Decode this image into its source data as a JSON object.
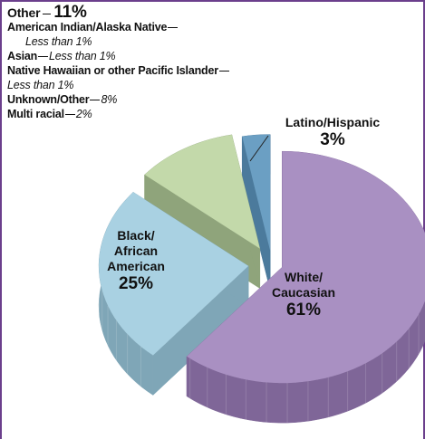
{
  "chart_data": {
    "type": "pie",
    "categories": [
      "White/Caucasian",
      "Black/African American",
      "Other",
      "Latino/Hispanic"
    ],
    "values": [
      61,
      25,
      11,
      3
    ],
    "value_labels": [
      "61%",
      "25%",
      "11%",
      "3%"
    ],
    "colors": [
      "#a990c2",
      "#a9d1e2",
      "#c3d9aa",
      "#6b9fc3"
    ],
    "side_colors": [
      "#7f6698",
      "#7fa6b7",
      "#8fa47b",
      "#4b7a9c"
    ],
    "breakdown": [
      {
        "name": "American Indian/Alaska Native",
        "detail": "Less than 1%"
      },
      {
        "name": "Asian",
        "detail": "Less than 1%"
      },
      {
        "name": "Native Hawaiian or other Pacific Islander",
        "detail": "Less than 1%"
      },
      {
        "name": "Unknown/Other",
        "detail": "8%"
      },
      {
        "name": "Multi racial",
        "detail": "2%"
      }
    ]
  }
}
